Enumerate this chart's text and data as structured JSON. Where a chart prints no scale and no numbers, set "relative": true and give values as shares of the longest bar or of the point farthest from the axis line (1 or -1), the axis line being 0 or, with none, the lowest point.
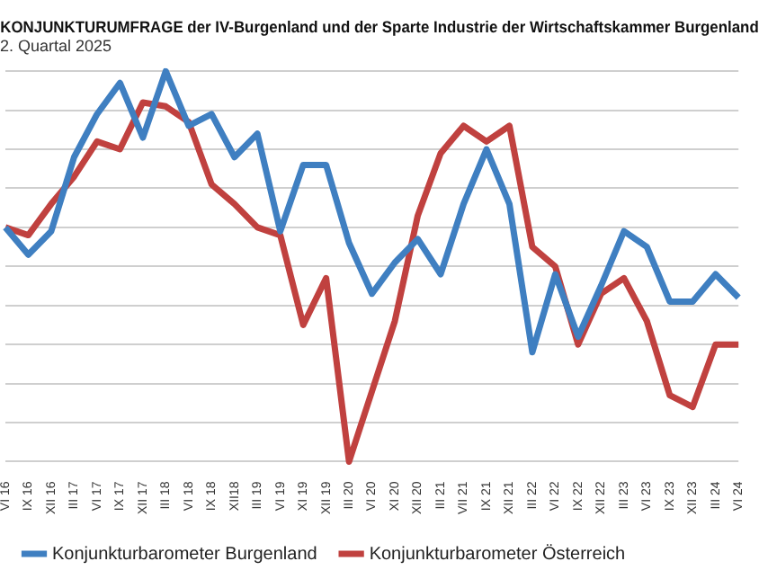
{
  "chart_data": {
    "type": "line",
    "title": "KONJUNKTURUMFRAGE der IV-Burgenland und der Sparte Industrie der Wirtschaftskammer Burgenland",
    "subtitle": "2. Quartal 2025",
    "relative": true,
    "grid": "y",
    "legend": "bottom",
    "marker": "none",
    "line_style": "solid",
    "categories": [
      "VI 16",
      "IX 16",
      "XII 16",
      "III 17",
      "VI 17",
      "IX 17",
      "XII 17",
      "III 18",
      "VI 18",
      "IX 18",
      "XII18",
      "III 19",
      "VI 19",
      "XI 19",
      "XII 19",
      "III 20",
      "VI 20",
      "XI 20",
      "XII 20",
      "III 21",
      "VII 21",
      "IX 21",
      "XII 21",
      "III 22",
      "VI 22",
      "IX 22",
      "XII 22",
      "III 23",
      "VI 23",
      "IX 23",
      "XII 23",
      "III 24",
      "VI 24"
    ],
    "series": [
      {
        "name": "Konjunkturbarometer Burgenland",
        "color": "#3f7fc1",
        "values": [
          0.6,
          0.53,
          0.59,
          0.78,
          0.89,
          0.97,
          0.83,
          1,
          0.86,
          0.89,
          0.78,
          0.84,
          0.59,
          0.76,
          0.76,
          0.56,
          0.43,
          0.51,
          0.57,
          0.48,
          0.66,
          0.8,
          0.66,
          0.28,
          0.48,
          0.32,
          0.45,
          0.59,
          0.55,
          0.41,
          0.41,
          0.48,
          0.42
        ]
      },
      {
        "name": "Konjunkturbarometer Österreich",
        "color": "#c0413f",
        "values": [
          0.6,
          0.58,
          0.66,
          0.73,
          0.82,
          0.8,
          0.92,
          0.91,
          0.87,
          0.71,
          0.66,
          0.6,
          0.58,
          0.35,
          0.47,
          0,
          0.18,
          0.36,
          0.63,
          0.79,
          0.86,
          0.82,
          0.86,
          0.55,
          0.5,
          0.3,
          0.43,
          0.47,
          0.36,
          0.17,
          0.14,
          0.3,
          0.3
        ]
      }
    ]
  }
}
